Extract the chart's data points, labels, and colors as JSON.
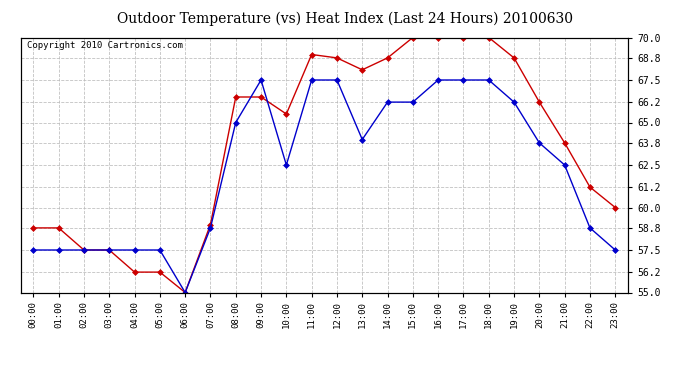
{
  "title": "Outdoor Temperature (vs) Heat Index (Last 24 Hours) 20100630",
  "copyright": "Copyright 2010 Cartronics.com",
  "hours": [
    "00:00",
    "01:00",
    "02:00",
    "03:00",
    "04:00",
    "05:00",
    "06:00",
    "07:00",
    "08:00",
    "09:00",
    "10:00",
    "11:00",
    "12:00",
    "13:00",
    "14:00",
    "15:00",
    "16:00",
    "17:00",
    "18:00",
    "19:00",
    "20:00",
    "21:00",
    "22:00",
    "23:00"
  ],
  "red_data": [
    58.8,
    58.8,
    57.5,
    57.5,
    56.2,
    56.2,
    55.0,
    59.0,
    66.5,
    66.5,
    65.5,
    69.0,
    68.8,
    68.1,
    68.8,
    70.0,
    70.0,
    70.0,
    70.0,
    68.8,
    66.2,
    63.8,
    61.2,
    60.0
  ],
  "blue_data": [
    57.5,
    57.5,
    57.5,
    57.5,
    57.5,
    57.5,
    55.0,
    58.8,
    65.0,
    67.5,
    62.5,
    67.5,
    67.5,
    64.0,
    66.2,
    66.2,
    67.5,
    67.5,
    67.5,
    66.2,
    63.8,
    62.5,
    58.8,
    57.5
  ],
  "ylim": [
    55.0,
    70.0
  ],
  "yticks": [
    55.0,
    56.2,
    57.5,
    58.8,
    60.0,
    61.2,
    62.5,
    63.8,
    65.0,
    66.2,
    67.5,
    68.8,
    70.0
  ],
  "red_color": "#cc0000",
  "blue_color": "#0000cc",
  "bg_color": "#ffffff",
  "grid_color": "#bbbbbb",
  "title_fontsize": 10,
  "copyright_fontsize": 6.5
}
